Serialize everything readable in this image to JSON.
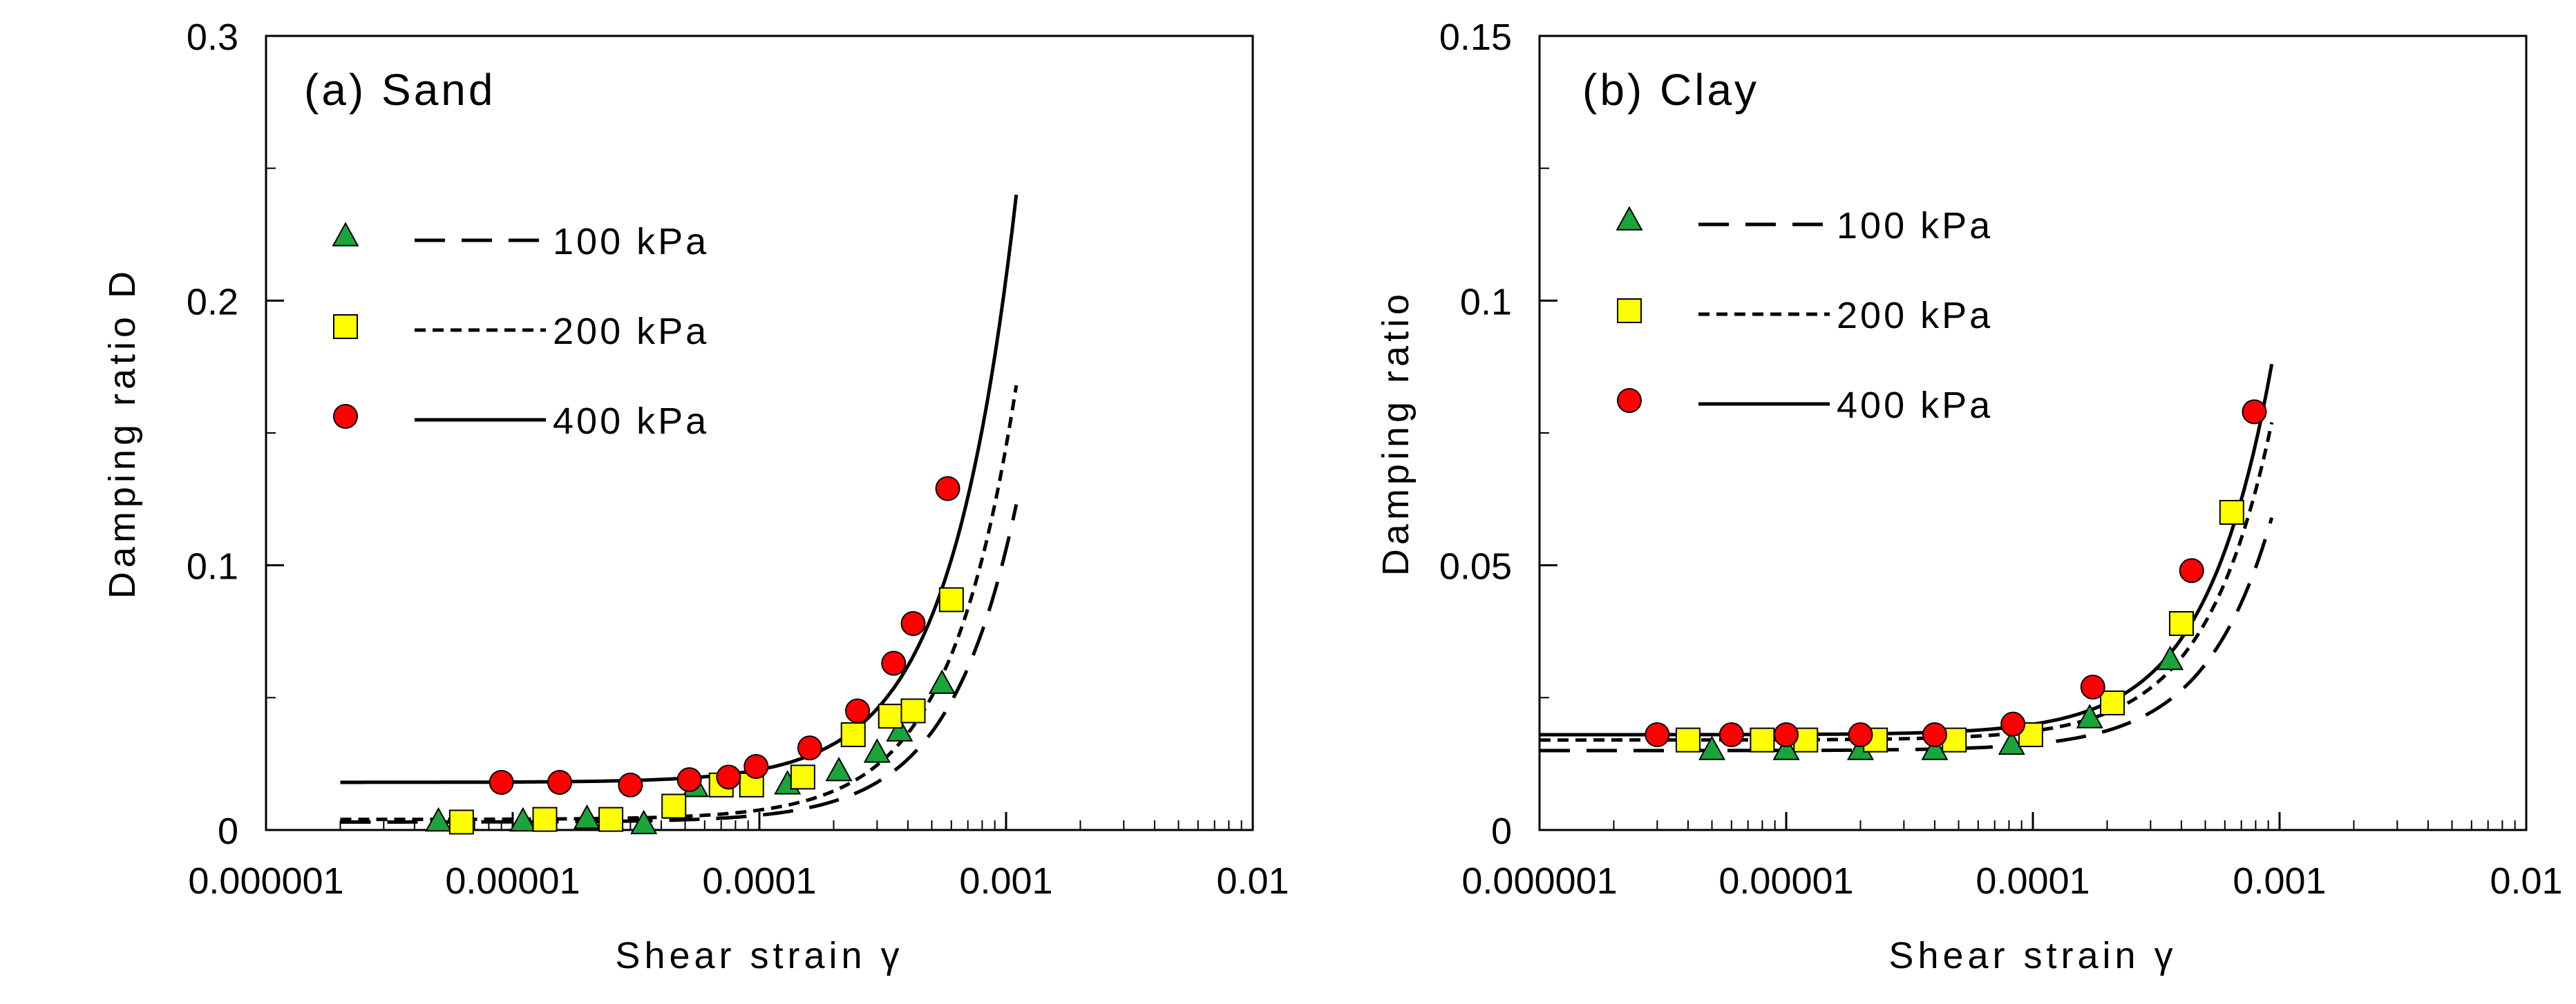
{
  "chart_data": [
    {
      "panel": "a",
      "type": "scatter",
      "title": "(a) Sand",
      "xlabel": "Shear strain γ",
      "ylabel": "Damping ratio D",
      "xscale": "log",
      "xlim": [
        1e-06,
        0.01
      ],
      "ylim": [
        0,
        0.3
      ],
      "xticks": [
        "0.000001",
        "0.00001",
        "0.0001",
        "0.001",
        "0.01"
      ],
      "yticks": [
        "0",
        "0.1",
        "0.2",
        "0.3"
      ],
      "legend_position": "upper-left",
      "series": [
        {
          "name": "100 kPa",
          "marker": "triangle",
          "marker_color": "#1aa53a",
          "line_style": "long-dash",
          "points": [
            [
              5e-06,
              0.003
            ],
            [
              1.1e-05,
              0.003
            ],
            [
              2e-05,
              0.004
            ],
            [
              3.4e-05,
              0.002
            ],
            [
              5.5e-05,
              0.016
            ],
            [
              0.00013,
              0.017
            ],
            [
              0.00021,
              0.022
            ],
            [
              0.0003,
              0.029
            ],
            [
              0.00037,
              0.037
            ],
            [
              0.00055,
              0.055
            ]
          ],
          "curve": {
            "D0": 0.003,
            "a": 0.12,
            "gmax": 0.0011
          }
        },
        {
          "name": "200 kPa",
          "marker": "square",
          "marker_color": "#ffff00",
          "line_style": "short-dash",
          "points": [
            [
              6.2e-06,
              0.003
            ],
            [
              1.35e-05,
              0.004
            ],
            [
              2.5e-05,
              0.004
            ],
            [
              4.5e-05,
              0.009
            ],
            [
              7e-05,
              0.017
            ],
            [
              9.3e-05,
              0.017
            ],
            [
              0.00015,
              0.02
            ],
            [
              0.00024,
              0.036
            ],
            [
              0.00034,
              0.043
            ],
            [
              0.00042,
              0.045
            ],
            [
              0.0006,
              0.087
            ]
          ],
          "curve": {
            "D0": 0.004,
            "a": 0.164,
            "gmax": 0.0011
          }
        },
        {
          "name": "400 kPa",
          "marker": "circle",
          "marker_color": "#ff0000",
          "line_style": "solid",
          "points": [
            [
              9e-06,
              0.018
            ],
            [
              1.55e-05,
              0.018
            ],
            [
              3e-05,
              0.017
            ],
            [
              5.2e-05,
              0.019
            ],
            [
              7.5e-05,
              0.02
            ],
            [
              9.7e-05,
              0.024
            ],
            [
              0.00016,
              0.031
            ],
            [
              0.00025,
              0.045
            ],
            [
              0.00035,
              0.063
            ],
            [
              0.00042,
              0.078
            ],
            [
              0.00058,
              0.129
            ]
          ],
          "curve": {
            "D0": 0.018,
            "a": 0.222,
            "gmax": 0.0011
          }
        }
      ]
    },
    {
      "panel": "b",
      "type": "scatter",
      "title": "(b) Clay",
      "xlabel": "Shear strain γ",
      "ylabel": "Damping ratio",
      "xscale": "log",
      "xlim": [
        1e-06,
        0.01
      ],
      "ylim": [
        0,
        0.15
      ],
      "xticks": [
        "0.000001",
        "0.00001",
        "0.0001",
        "0.001",
        "0.01"
      ],
      "yticks": [
        "0",
        "0.05",
        "0.1",
        "0.15"
      ],
      "legend_position": "upper-left",
      "series": [
        {
          "name": "100 kPa",
          "marker": "triangle",
          "marker_color": "#1aa53a",
          "line_style": "long-dash",
          "points": [
            [
              5e-06,
              0.015
            ],
            [
              1e-05,
              0.015
            ],
            [
              2e-05,
              0.015
            ],
            [
              4e-05,
              0.015
            ],
            [
              8.2e-05,
              0.016
            ],
            [
              0.00017,
              0.021
            ],
            [
              0.00036,
              0.032
            ]
          ],
          "curve": {
            "D0": 0.015,
            "a": 0.044,
            "gmax": 0.00093
          }
        },
        {
          "name": "200 kPa",
          "marker": "square",
          "marker_color": "#ffff00",
          "line_style": "short-dash",
          "points": [
            [
              4e-06,
              0.017
            ],
            [
              8e-06,
              0.017
            ],
            [
              1.2e-05,
              0.017
            ],
            [
              2.3e-05,
              0.017
            ],
            [
              4.8e-05,
              0.017
            ],
            [
              9.8e-05,
              0.018
            ],
            [
              0.00021,
              0.024
            ],
            [
              0.0004,
              0.039
            ],
            [
              0.00064,
              0.06
            ]
          ],
          "curve": {
            "D0": 0.017,
            "a": 0.06,
            "gmax": 0.00093
          }
        },
        {
          "name": "400 kPa",
          "marker": "circle",
          "marker_color": "#ff0000",
          "line_style": "solid",
          "points": [
            [
              3e-06,
              0.018
            ],
            [
              6e-06,
              0.018
            ],
            [
              1e-05,
              0.018
            ],
            [
              2e-05,
              0.018
            ],
            [
              4e-05,
              0.018
            ],
            [
              8.3e-05,
              0.02
            ],
            [
              0.000175,
              0.027
            ],
            [
              0.00044,
              0.049
            ],
            [
              0.00079,
              0.079
            ]
          ],
          "curve": {
            "D0": 0.018,
            "a": 0.07,
            "gmax": 0.00093
          }
        }
      ]
    }
  ]
}
